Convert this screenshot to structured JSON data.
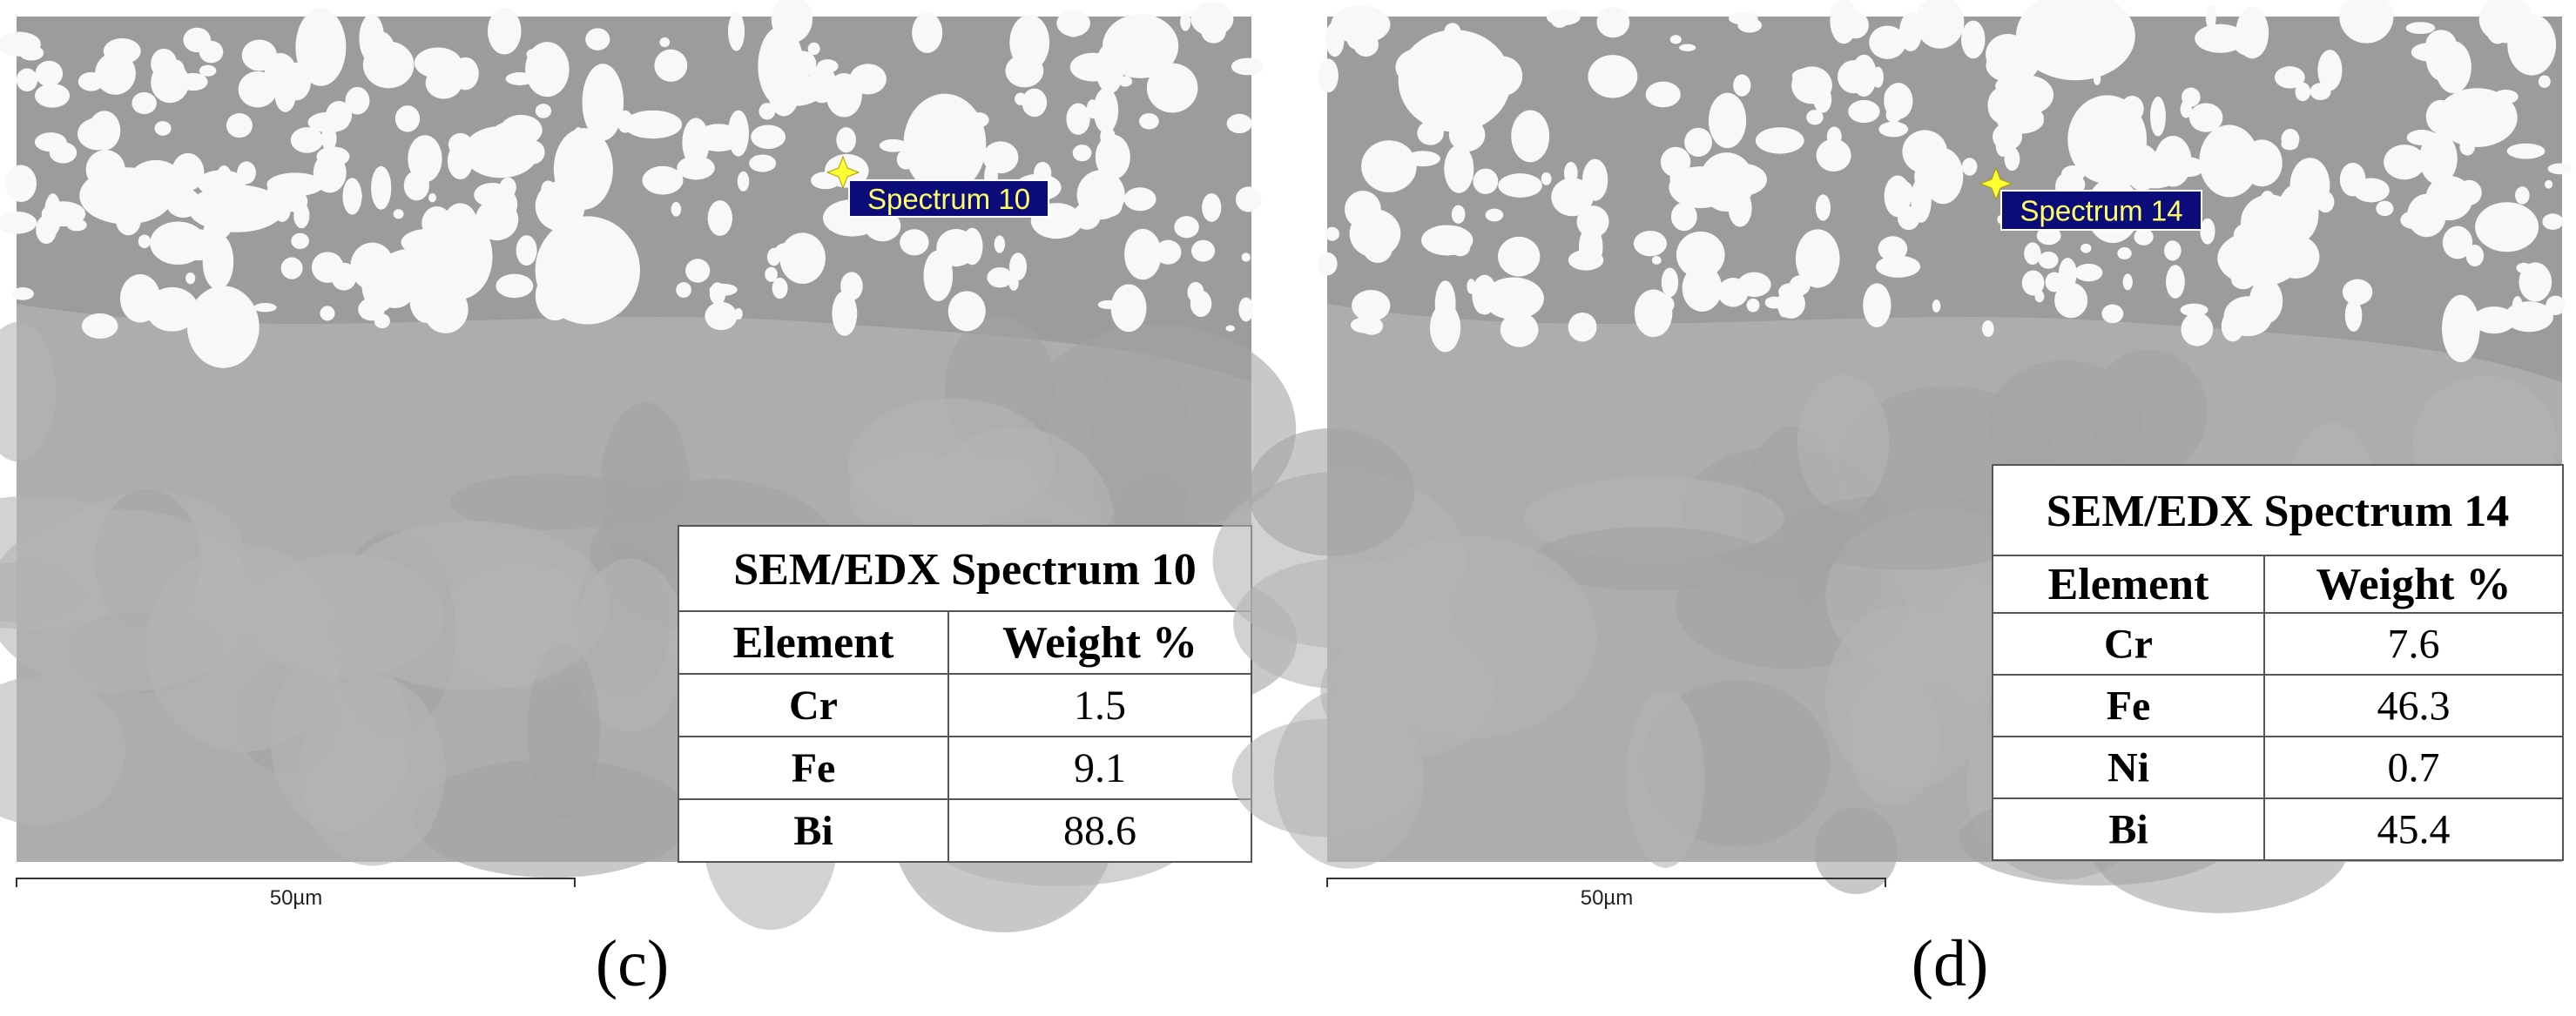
{
  "panels": [
    {
      "spectrum_label": "Spectrum 10",
      "scale_bar": "50µm",
      "label": "(c)",
      "table": {
        "title": "SEM/EDX Spectrum 10",
        "header": [
          "Element",
          "Weight %"
        ],
        "rows": [
          [
            "Cr",
            1.5
          ],
          [
            "Fe",
            9.1
          ],
          [
            "Bi",
            88.6
          ]
        ]
      }
    },
    {
      "spectrum_label": "Spectrum 14",
      "scale_bar": "50µm",
      "label": "(d)",
      "table": {
        "title": "SEM/EDX Spectrum 14",
        "header": [
          "Element",
          "Weight %"
        ],
        "rows": [
          [
            "Cr",
            7.6
          ],
          [
            "Fe",
            46.3
          ],
          [
            "Ni",
            0.7
          ],
          [
            "Bi",
            45.4
          ]
        ]
      }
    }
  ]
}
